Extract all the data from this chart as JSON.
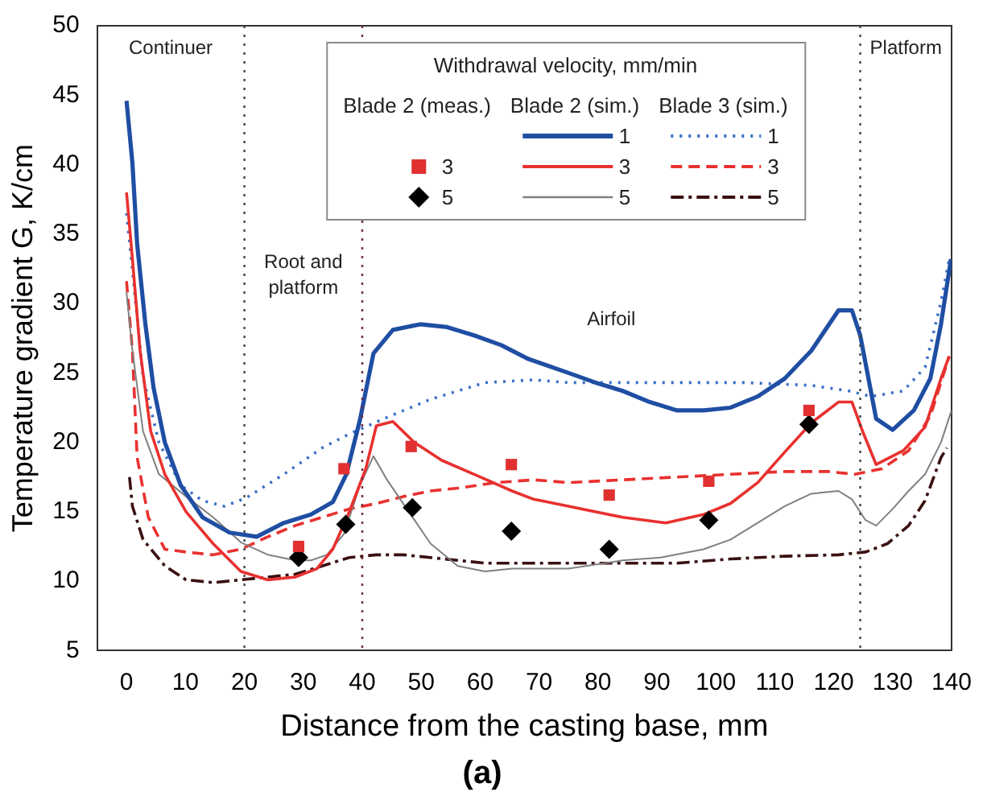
{
  "chart_data": {
    "type": "line",
    "title": "(a)",
    "xlabel": "Distance from the casting base, mm",
    "ylabel": "Temperature gradient G, K/cm",
    "legend_title": "Withdrawal velocity, mm/min",
    "annotations": [
      "Blade 2 (meas.)",
      "Blade 2 (sim.)",
      "Blade 3 (sim.)",
      "Continuer",
      "Root and platform",
      "Airfoil",
      "Platform"
    ],
    "xlim": [
      -5,
      140
    ],
    "xticks": [
      0,
      10,
      20,
      30,
      40,
      50,
      60,
      70,
      80,
      90,
      100,
      110,
      120,
      130,
      140
    ],
    "ylim": [
      5,
      50
    ],
    "yticks": [
      5,
      10,
      15,
      20,
      25,
      30,
      35,
      40,
      45,
      50
    ],
    "grid": false,
    "legend": "top",
    "ref_lines": [
      {
        "axis": "x",
        "value": 20,
        "color": "#444444",
        "line_style": "dotted"
      },
      {
        "axis": "x",
        "value": 40,
        "color": "#7a2a3a",
        "line_style": "dotted"
      },
      {
        "axis": "x",
        "value": 124.5,
        "color": "#444444",
        "line_style": "dotted"
      }
    ],
    "series": [
      {
        "name": "3",
        "type": "scatter",
        "marker": "square",
        "color": "#e03030",
        "x": [
          29.2,
          36.9,
          48.3,
          65.3,
          81.9,
          98.8,
          115.8
        ],
        "values": [
          12.5,
          18.1,
          19.7,
          18.4,
          16.2,
          17.2,
          22.3
        ]
      },
      {
        "name": "5",
        "type": "scatter",
        "marker": "diamond",
        "color": "#000000",
        "x": [
          29.2,
          37.2,
          48.5,
          65.3,
          81.9,
          98.8,
          115.8
        ],
        "values": [
          11.7,
          14.1,
          15.3,
          13.6,
          12.3,
          14.4,
          21.3
        ]
      },
      {
        "name": "1",
        "type": "line",
        "line_style": "solid",
        "color": "#1f4ea3",
        "x": [
          0,
          1,
          1.8,
          3.2,
          4.6,
          6.5,
          9.2,
          12.9,
          17.5,
          22.1,
          26.7,
          31.3,
          35,
          37.3,
          39.6,
          41.9,
          45.2,
          49.8,
          54.4,
          59,
          63.6,
          68.2,
          75,
          79.6,
          84.2,
          88.8,
          93.4,
          98,
          102.5,
          107.1,
          111.7,
          116.2,
          120.8,
          123.1,
          124.5,
          127.2,
          130,
          133.6,
          136.4,
          138.2,
          139.9
        ],
        "values": [
          44.6,
          40.1,
          34.3,
          28.5,
          23.9,
          20,
          16.9,
          14.6,
          13.5,
          13.2,
          14.2,
          14.8,
          15.7,
          17.7,
          21.6,
          26.4,
          28.1,
          28.5,
          28.3,
          27.7,
          27,
          26,
          25,
          24.3,
          23.7,
          22.9,
          22.3,
          22.3,
          22.5,
          23.3,
          24.6,
          26.6,
          29.5,
          29.5,
          27.7,
          21.7,
          20.9,
          22.3,
          24.6,
          28.5,
          33.2
        ]
      },
      {
        "name": "3",
        "type": "line",
        "line_style": "solid",
        "color": "#e8312f",
        "x": [
          0,
          1,
          2.3,
          4.1,
          6.5,
          10.1,
          14.7,
          19.4,
          24,
          28.6,
          32.3,
          35,
          37.8,
          40.6,
          42.4,
          45.2,
          48.8,
          53.5,
          59,
          65.4,
          69.1,
          75,
          84.2,
          91.5,
          97.9,
          102.5,
          107.1,
          111.7,
          116.2,
          120.8,
          123.1,
          124.9,
          127.2,
          131.8,
          135.5,
          138.2,
          139.6
        ],
        "values": [
          38,
          33.2,
          26.6,
          20.8,
          17.7,
          15,
          12.7,
          10.7,
          10.1,
          10.3,
          10.9,
          12.3,
          15,
          18.1,
          21.2,
          21.5,
          20,
          18.7,
          17.7,
          16.5,
          15.9,
          15.4,
          14.6,
          14.2,
          14.8,
          15.6,
          17.1,
          19.3,
          21.4,
          22.9,
          22.9,
          20.8,
          18.4,
          19.4,
          21.1,
          24.6,
          26.2
        ]
      },
      {
        "name": "5",
        "type": "line",
        "line_style": "solid",
        "color": "#808080",
        "x": [
          0,
          1,
          2.8,
          5.5,
          10.1,
          14.7,
          19.4,
          24,
          28.6,
          31.3,
          34,
          36.9,
          39.6,
          41.9,
          44.2,
          47.9,
          51.6,
          56.2,
          60.8,
          65.4,
          69.1,
          75,
          84.2,
          90.6,
          97.9,
          102.5,
          107.1,
          111.7,
          116.2,
          120.8,
          123.1,
          125.4,
          127.2,
          130,
          132.7,
          135.5,
          138.2,
          140
        ],
        "values": [
          30.8,
          26.6,
          20.8,
          17.7,
          16.1,
          14.6,
          12.8,
          11.9,
          11.5,
          11.5,
          11.9,
          13.4,
          16.9,
          19,
          17.3,
          15,
          12.7,
          11.1,
          10.7,
          10.9,
          10.9,
          10.9,
          11.5,
          11.7,
          12.3,
          13,
          14.2,
          15.4,
          16.3,
          16.5,
          15.9,
          14.4,
          14,
          15.2,
          16.5,
          17.7,
          20,
          22.3
        ]
      },
      {
        "name": "1",
        "type": "line",
        "line_style": "dotted",
        "color": "#3a6fc8",
        "x": [
          0,
          1,
          2.8,
          5.5,
          9.2,
          12.9,
          16.6,
          20.3,
          26.7,
          33.2,
          37.8,
          44.2,
          51.6,
          60.8,
          69.1,
          75,
          85,
          95,
          105,
          116.2,
          122.6,
          126.3,
          131.8,
          135.5,
          138.2,
          139.6
        ],
        "values": [
          36.5,
          32.4,
          24.7,
          20,
          16.9,
          15.8,
          15.4,
          16,
          17.7,
          19.6,
          20.6,
          21.8,
          23.1,
          24.3,
          24.5,
          24.3,
          24.3,
          24.3,
          24.3,
          24.1,
          23.7,
          23.3,
          23.7,
          25.4,
          30.1,
          33.2
        ]
      },
      {
        "name": "3",
        "type": "line",
        "line_style": "dashed",
        "color": "#e8312f",
        "x": [
          0,
          1,
          1.8,
          3.7,
          6.5,
          10.1,
          14.7,
          19.4,
          24,
          28.6,
          33.2,
          37.8,
          42.4,
          47,
          51.6,
          56.2,
          62.7,
          69.1,
          75,
          84.2,
          93.4,
          102.5,
          111.7,
          119,
          123.6,
          128.2,
          132.7,
          136.4,
          139.6
        ],
        "values": [
          31.6,
          26.6,
          18.9,
          14.6,
          12.3,
          12.1,
          11.9,
          12.3,
          13.2,
          14,
          14.6,
          15.2,
          15.6,
          16.1,
          16.5,
          16.7,
          17.1,
          17.3,
          17.1,
          17.3,
          17.5,
          17.7,
          17.9,
          17.9,
          17.7,
          18.1,
          19.4,
          21.9,
          26.2
        ]
      },
      {
        "name": "5",
        "type": "line",
        "line_style": "dashdot",
        "color": "#3a1010",
        "x": [
          0.5,
          1,
          2.8,
          6.5,
          10.1,
          14.7,
          19.4,
          24,
          28.6,
          33.2,
          37.8,
          42.4,
          47,
          51.6,
          60.8,
          69.1,
          75,
          84.2,
          93.4,
          102.5,
          111.7,
          120.8,
          125.4,
          129.1,
          132.7,
          135.5,
          138.2,
          139.2
        ],
        "values": [
          17.5,
          15.4,
          13,
          11.1,
          10.1,
          9.9,
          10.1,
          10.3,
          10.5,
          11.1,
          11.7,
          11.9,
          11.9,
          11.7,
          11.3,
          11.3,
          11.3,
          11.3,
          11.3,
          11.6,
          11.8,
          11.9,
          12.1,
          12.7,
          14,
          15.8,
          18.9,
          19.6
        ]
      }
    ]
  }
}
